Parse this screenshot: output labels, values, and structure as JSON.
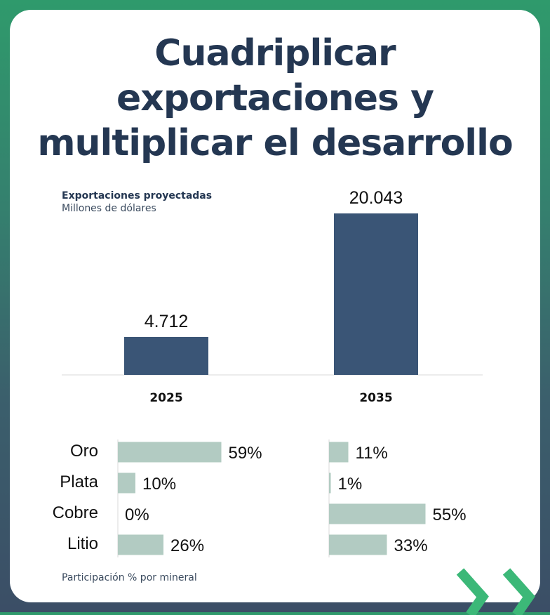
{
  "title_lines": [
    "Cuadriplicar",
    "exportaciones y",
    "multiplicar el desarrollo"
  ],
  "subtitle_bold": "Exportaciones proyectadas",
  "subtitle_normal": "Millones de dólares",
  "footnote": "Participación % por mineral",
  "colors": {
    "bar_primary": "#3a5576",
    "bar_secondary": "#b2cbc2",
    "title": "#243752",
    "accent": "#3cb878"
  },
  "chart_data": [
    {
      "type": "bar",
      "categories": [
        "2025",
        "2035"
      ],
      "values": [
        4712,
        20043
      ],
      "value_labels": [
        "4.712",
        "20.043"
      ],
      "title": "Exportaciones proyectadas",
      "ylabel": "Millones de dólares",
      "ylim": [
        0,
        20043
      ],
      "grid": false
    },
    {
      "type": "bar",
      "orientation": "horizontal",
      "categories": [
        "Oro",
        "Plata",
        "Cobre",
        "Litio"
      ],
      "series": [
        {
          "name": "2025",
          "values": [
            59,
            10,
            0,
            26
          ],
          "labels": [
            "59%",
            "10%",
            "0%",
            "26%"
          ]
        },
        {
          "name": "2035",
          "values": [
            11,
            1,
            55,
            33
          ],
          "labels": [
            "11%",
            "1%",
            "55%",
            "33%"
          ]
        }
      ],
      "title": "Participación % por mineral",
      "xlim": [
        0,
        100
      ]
    }
  ]
}
